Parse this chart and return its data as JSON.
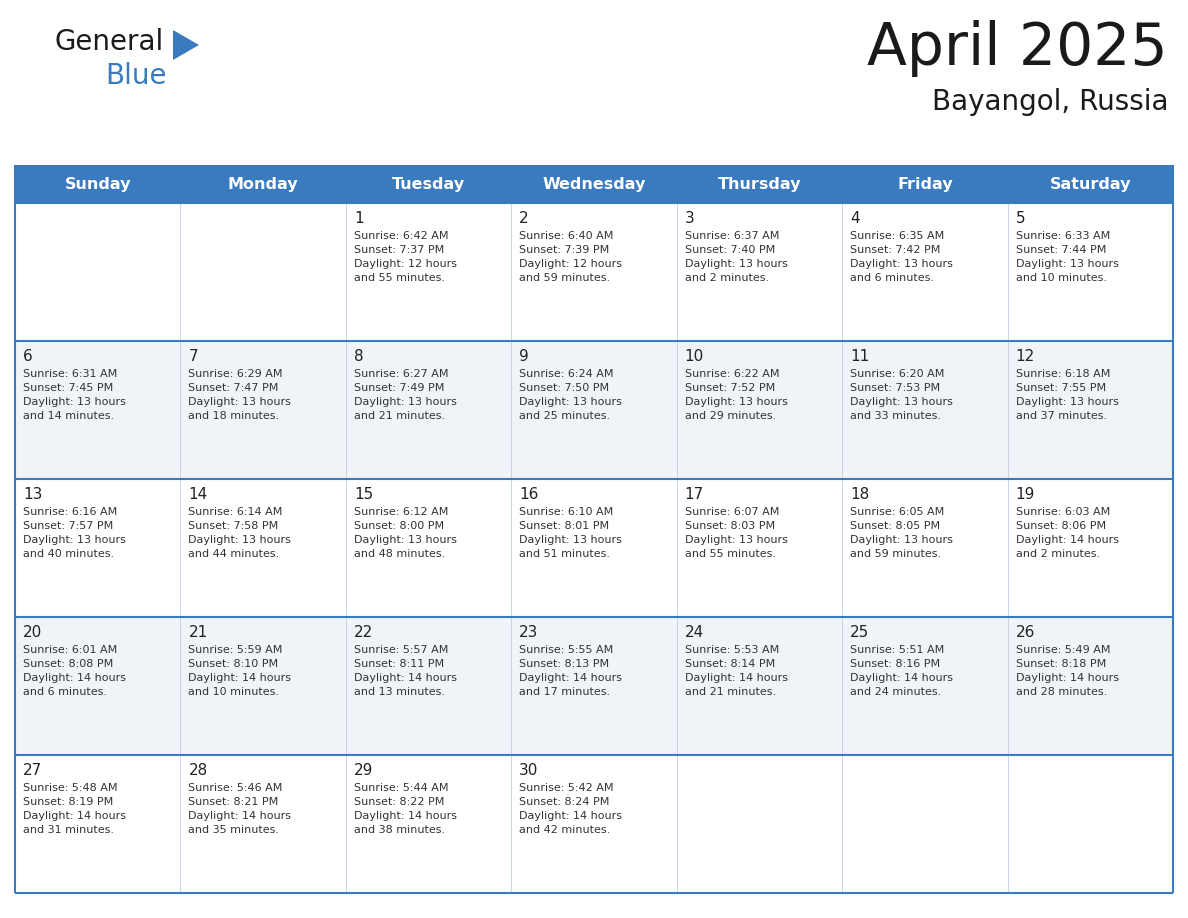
{
  "title": "April 2025",
  "subtitle": "Bayangol, Russia",
  "days_of_week": [
    "Sunday",
    "Monday",
    "Tuesday",
    "Wednesday",
    "Thursday",
    "Friday",
    "Saturday"
  ],
  "header_bg": "#3a7abf",
  "header_text_color": "#ffffff",
  "row_bg_light": "#f0f4f8",
  "row_bg_white": "#ffffff",
  "cell_text_color": "#333333",
  "day_num_color": "#222222",
  "grid_color": "#3a7abf",
  "sep_color": "#c0cfe0",
  "calendar_data": [
    [
      {
        "day": "",
        "info": ""
      },
      {
        "day": "",
        "info": ""
      },
      {
        "day": "1",
        "info": "Sunrise: 6:42 AM\nSunset: 7:37 PM\nDaylight: 12 hours\nand 55 minutes."
      },
      {
        "day": "2",
        "info": "Sunrise: 6:40 AM\nSunset: 7:39 PM\nDaylight: 12 hours\nand 59 minutes."
      },
      {
        "day": "3",
        "info": "Sunrise: 6:37 AM\nSunset: 7:40 PM\nDaylight: 13 hours\nand 2 minutes."
      },
      {
        "day": "4",
        "info": "Sunrise: 6:35 AM\nSunset: 7:42 PM\nDaylight: 13 hours\nand 6 minutes."
      },
      {
        "day": "5",
        "info": "Sunrise: 6:33 AM\nSunset: 7:44 PM\nDaylight: 13 hours\nand 10 minutes."
      }
    ],
    [
      {
        "day": "6",
        "info": "Sunrise: 6:31 AM\nSunset: 7:45 PM\nDaylight: 13 hours\nand 14 minutes."
      },
      {
        "day": "7",
        "info": "Sunrise: 6:29 AM\nSunset: 7:47 PM\nDaylight: 13 hours\nand 18 minutes."
      },
      {
        "day": "8",
        "info": "Sunrise: 6:27 AM\nSunset: 7:49 PM\nDaylight: 13 hours\nand 21 minutes."
      },
      {
        "day": "9",
        "info": "Sunrise: 6:24 AM\nSunset: 7:50 PM\nDaylight: 13 hours\nand 25 minutes."
      },
      {
        "day": "10",
        "info": "Sunrise: 6:22 AM\nSunset: 7:52 PM\nDaylight: 13 hours\nand 29 minutes."
      },
      {
        "day": "11",
        "info": "Sunrise: 6:20 AM\nSunset: 7:53 PM\nDaylight: 13 hours\nand 33 minutes."
      },
      {
        "day": "12",
        "info": "Sunrise: 6:18 AM\nSunset: 7:55 PM\nDaylight: 13 hours\nand 37 minutes."
      }
    ],
    [
      {
        "day": "13",
        "info": "Sunrise: 6:16 AM\nSunset: 7:57 PM\nDaylight: 13 hours\nand 40 minutes."
      },
      {
        "day": "14",
        "info": "Sunrise: 6:14 AM\nSunset: 7:58 PM\nDaylight: 13 hours\nand 44 minutes."
      },
      {
        "day": "15",
        "info": "Sunrise: 6:12 AM\nSunset: 8:00 PM\nDaylight: 13 hours\nand 48 minutes."
      },
      {
        "day": "16",
        "info": "Sunrise: 6:10 AM\nSunset: 8:01 PM\nDaylight: 13 hours\nand 51 minutes."
      },
      {
        "day": "17",
        "info": "Sunrise: 6:07 AM\nSunset: 8:03 PM\nDaylight: 13 hours\nand 55 minutes."
      },
      {
        "day": "18",
        "info": "Sunrise: 6:05 AM\nSunset: 8:05 PM\nDaylight: 13 hours\nand 59 minutes."
      },
      {
        "day": "19",
        "info": "Sunrise: 6:03 AM\nSunset: 8:06 PM\nDaylight: 14 hours\nand 2 minutes."
      }
    ],
    [
      {
        "day": "20",
        "info": "Sunrise: 6:01 AM\nSunset: 8:08 PM\nDaylight: 14 hours\nand 6 minutes."
      },
      {
        "day": "21",
        "info": "Sunrise: 5:59 AM\nSunset: 8:10 PM\nDaylight: 14 hours\nand 10 minutes."
      },
      {
        "day": "22",
        "info": "Sunrise: 5:57 AM\nSunset: 8:11 PM\nDaylight: 14 hours\nand 13 minutes."
      },
      {
        "day": "23",
        "info": "Sunrise: 5:55 AM\nSunset: 8:13 PM\nDaylight: 14 hours\nand 17 minutes."
      },
      {
        "day": "24",
        "info": "Sunrise: 5:53 AM\nSunset: 8:14 PM\nDaylight: 14 hours\nand 21 minutes."
      },
      {
        "day": "25",
        "info": "Sunrise: 5:51 AM\nSunset: 8:16 PM\nDaylight: 14 hours\nand 24 minutes."
      },
      {
        "day": "26",
        "info": "Sunrise: 5:49 AM\nSunset: 8:18 PM\nDaylight: 14 hours\nand 28 minutes."
      }
    ],
    [
      {
        "day": "27",
        "info": "Sunrise: 5:48 AM\nSunset: 8:19 PM\nDaylight: 14 hours\nand 31 minutes."
      },
      {
        "day": "28",
        "info": "Sunrise: 5:46 AM\nSunset: 8:21 PM\nDaylight: 14 hours\nand 35 minutes."
      },
      {
        "day": "29",
        "info": "Sunrise: 5:44 AM\nSunset: 8:22 PM\nDaylight: 14 hours\nand 38 minutes."
      },
      {
        "day": "30",
        "info": "Sunrise: 5:42 AM\nSunset: 8:24 PM\nDaylight: 14 hours\nand 42 minutes."
      },
      {
        "day": "",
        "info": ""
      },
      {
        "day": "",
        "info": ""
      },
      {
        "day": "",
        "info": ""
      }
    ]
  ],
  "logo_general_color": "#1a1a1a",
  "logo_blue_color": "#3a7abf",
  "logo_triangle_color": "#3a7abf",
  "title_color": "#1a1a1a",
  "subtitle_color": "#1a1a1a"
}
